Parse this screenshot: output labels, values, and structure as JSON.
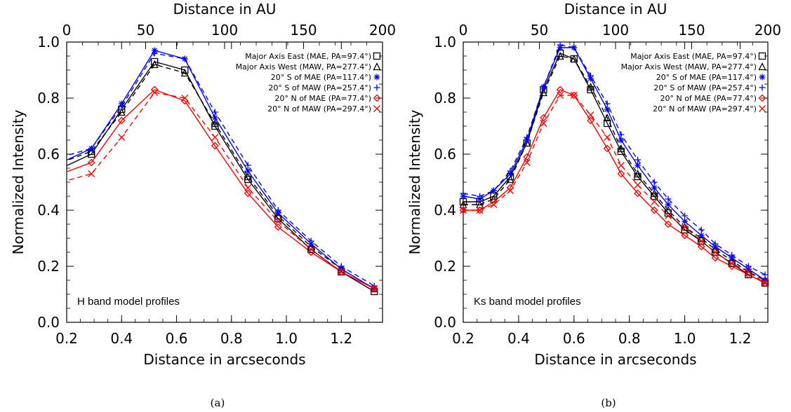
{
  "chart_data": [
    {
      "type": "line",
      "panel_caption": "(a)",
      "annotation": "H band model profiles",
      "xlabel": "Distance in arcseconds",
      "ylabel": "Normalized Intensity",
      "top_xlabel": "Distance in AU",
      "xlim": [
        0.2,
        1.35
      ],
      "ylim": [
        0.0,
        1.0
      ],
      "top_xlim": [
        0,
        200
      ],
      "xticks": [
        "0.2",
        "0.4",
        "0.6",
        "0.8",
        "1.0",
        "1.2"
      ],
      "yticks": [
        "0.0",
        "0.2",
        "0.4",
        "0.6",
        "0.8",
        "1.0"
      ],
      "top_xticks": [
        "0",
        "50",
        "100",
        "150",
        "200"
      ],
      "legend_position": "top-right",
      "x": [
        0.18,
        0.29,
        0.4,
        0.52,
        0.63,
        0.74,
        0.86,
        0.97,
        1.09,
        1.2,
        1.32
      ],
      "series": [
        {
          "name": "Major Axis East (MAE, PA=97.4°)",
          "color": "#000000",
          "dash": "solid",
          "marker": "square",
          "values": [
            0.55,
            0.6,
            0.76,
            0.93,
            0.9,
            0.7,
            0.51,
            0.37,
            0.26,
            0.18,
            0.11
          ]
        },
        {
          "name": "Major Axis West (MAW, PA=277.4°)",
          "color": "#000000",
          "dash": "dashed",
          "marker": "triangle",
          "values": [
            0.57,
            0.61,
            0.75,
            0.92,
            0.89,
            0.71,
            0.52,
            0.38,
            0.27,
            0.19,
            0.12
          ]
        },
        {
          "name": "20° S of MAE (PA=117.4°)",
          "color": "#0000ff",
          "dash": "solid",
          "marker": "asterisk",
          "values": [
            0.57,
            0.62,
            0.78,
            0.97,
            0.94,
            0.73,
            0.54,
            0.39,
            0.28,
            0.19,
            0.12
          ]
        },
        {
          "name": "20° S of MAW (PA=257.4°)",
          "color": "#0000ff",
          "dash": "dashed",
          "marker": "plus",
          "values": [
            0.59,
            0.62,
            0.77,
            0.96,
            0.94,
            0.75,
            0.56,
            0.4,
            0.29,
            0.2,
            0.13
          ]
        },
        {
          "name": "20° N of MAE (PA=77.4°)",
          "color": "#ff0000",
          "dash": "solid",
          "marker": "diamond",
          "values": [
            0.53,
            0.57,
            0.72,
            0.83,
            0.79,
            0.63,
            0.46,
            0.34,
            0.25,
            0.18,
            0.12
          ]
        },
        {
          "name": "20° N of MAW (PA=297.4°)",
          "color": "#ff0000",
          "dash": "dashed",
          "marker": "x",
          "values": [
            0.5,
            0.53,
            0.66,
            0.82,
            0.8,
            0.66,
            0.48,
            0.36,
            0.26,
            0.18,
            0.12
          ]
        }
      ]
    },
    {
      "type": "line",
      "panel_caption": "(b)",
      "annotation": "Ks band model profiles",
      "xlabel": "Distance in arcseconds",
      "ylabel": "Normalized Intensity",
      "top_xlabel": "Distance in AU",
      "xlim": [
        0.2,
        1.3
      ],
      "ylim": [
        0.0,
        1.0
      ],
      "top_xlim": [
        0,
        200
      ],
      "xticks": [
        "0.2",
        "0.4",
        "0.6",
        "0.8",
        "1.0",
        "1.2"
      ],
      "yticks": [
        "0.0",
        "0.2",
        "0.4",
        "0.6",
        "0.8",
        "1.0"
      ],
      "top_xticks": [
        "0",
        "50",
        "100",
        "150",
        "200"
      ],
      "legend_position": "top-right",
      "x": [
        0.2,
        0.26,
        0.31,
        0.37,
        0.43,
        0.49,
        0.55,
        0.6,
        0.66,
        0.72,
        0.77,
        0.83,
        0.89,
        0.94,
        1.0,
        1.06,
        1.11,
        1.17,
        1.23,
        1.29
      ],
      "series": [
        {
          "name": "Major Axis East (MAE, PA=97.4°)",
          "color": "#000000",
          "dash": "solid",
          "marker": "square",
          "values": [
            0.43,
            0.43,
            0.45,
            0.52,
            0.64,
            0.83,
            0.96,
            0.94,
            0.83,
            0.71,
            0.61,
            0.52,
            0.45,
            0.39,
            0.33,
            0.29,
            0.25,
            0.21,
            0.17,
            0.14
          ]
        },
        {
          "name": "Major Axis West (MAW, PA=277.4°)",
          "color": "#000000",
          "dash": "dashed",
          "marker": "triangle",
          "values": [
            0.42,
            0.42,
            0.44,
            0.51,
            0.64,
            0.82,
            0.95,
            0.94,
            0.84,
            0.73,
            0.62,
            0.53,
            0.46,
            0.4,
            0.34,
            0.3,
            0.26,
            0.22,
            0.18,
            0.15
          ]
        },
        {
          "name": "20° S of MAE (PA=117.4°)",
          "color": "#0000ff",
          "dash": "solid",
          "marker": "asterisk",
          "values": [
            0.45,
            0.44,
            0.47,
            0.53,
            0.65,
            0.84,
            0.98,
            0.98,
            0.87,
            0.76,
            0.65,
            0.56,
            0.48,
            0.42,
            0.36,
            0.31,
            0.27,
            0.23,
            0.19,
            0.15
          ]
        },
        {
          "name": "20° S of MAW (PA=257.4°)",
          "color": "#0000ff",
          "dash": "dashed",
          "marker": "plus",
          "values": [
            0.46,
            0.45,
            0.47,
            0.54,
            0.66,
            0.84,
            0.99,
            0.98,
            0.88,
            0.78,
            0.67,
            0.58,
            0.5,
            0.44,
            0.38,
            0.33,
            0.28,
            0.24,
            0.2,
            0.17
          ]
        },
        {
          "name": "20° N of MAE (PA=77.4°)",
          "color": "#ff0000",
          "dash": "solid",
          "marker": "diamond",
          "values": [
            0.4,
            0.4,
            0.43,
            0.48,
            0.59,
            0.73,
            0.83,
            0.81,
            0.72,
            0.62,
            0.53,
            0.46,
            0.4,
            0.35,
            0.31,
            0.27,
            0.23,
            0.2,
            0.17,
            0.14
          ]
        },
        {
          "name": "20° N of MAW (PA=297.4°)",
          "color": "#ff0000",
          "dash": "dashed",
          "marker": "x",
          "values": [
            0.4,
            0.4,
            0.42,
            0.47,
            0.57,
            0.71,
            0.81,
            0.81,
            0.74,
            0.66,
            0.56,
            0.49,
            0.43,
            0.38,
            0.34,
            0.29,
            0.25,
            0.21,
            0.18,
            0.14
          ]
        }
      ]
    }
  ]
}
